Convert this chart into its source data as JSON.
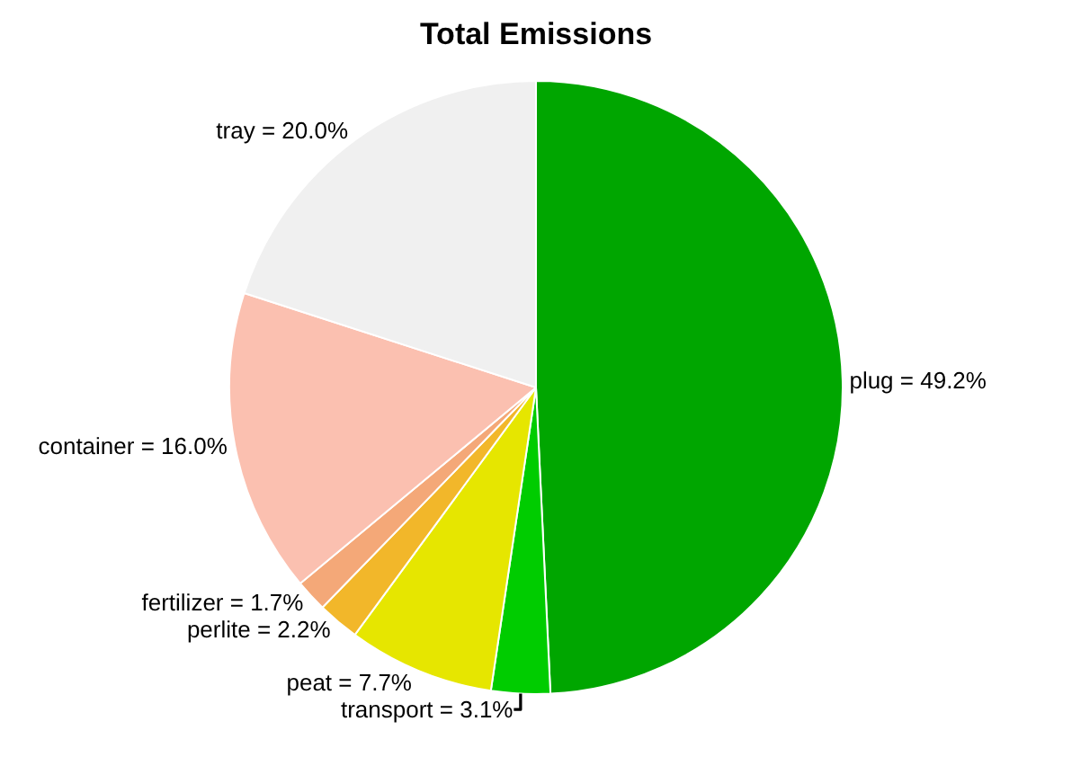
{
  "chart_data": {
    "type": "pie",
    "title": "Total Emissions",
    "categories": [
      "plug",
      "transport",
      "peat",
      "perlite",
      "fertilizer",
      "container",
      "tray"
    ],
    "values": [
      49.2,
      3.1,
      7.7,
      2.2,
      1.7,
      16.0,
      20.0
    ],
    "colors": [
      "#00a600",
      "#00cc00",
      "#e6e600",
      "#f2b72a",
      "#f4a878",
      "#fbc0b0",
      "#f0f0f0"
    ],
    "value_labels": [
      "= 49.2%",
      "= 3.1%",
      "= 7.7%",
      "= 2.2%",
      "= 1.7%",
      "= 16.0%",
      "= 20.0%"
    ],
    "legend": false
  }
}
